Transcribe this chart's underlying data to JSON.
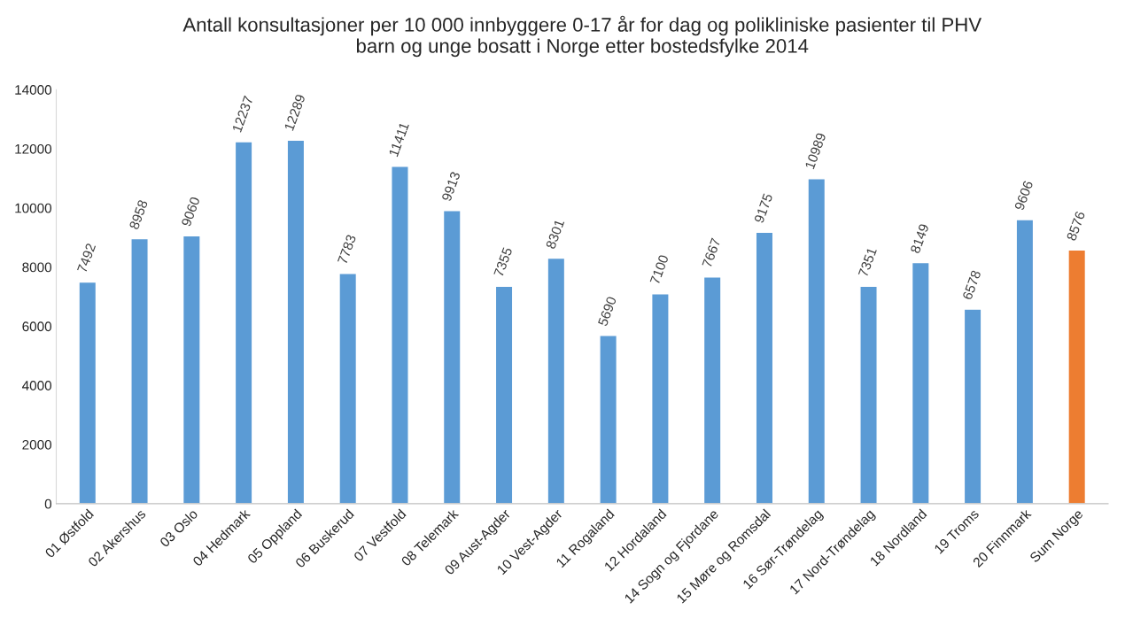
{
  "chart_data": {
    "type": "bar",
    "title": "Antall konsultasjoner per 10 000 innbyggere 0-17 år for dag og polikliniske pasienter til PHV\nbarn og unge bosatt i Norge etter bostedsfylke 2014",
    "categories": [
      "01 Østfold",
      "02 Akershus",
      "03 Oslo",
      "04 Hedmark",
      "05 Oppland",
      "06 Buskerud",
      "07 Vestfold",
      "08 Telemark",
      "09 Aust-Agder",
      "10 Vest-Agder",
      "11 Rogaland",
      "12 Hordaland",
      "14 Sogn og Fjordane",
      "15 Møre og Romsdal",
      "16 Sør-Trøndelag",
      "17 Nord-Trøndelag",
      "18 Nordland",
      "19 Troms",
      "20 Finnmark",
      "Sum Norge"
    ],
    "values": [
      7492,
      8958,
      9060,
      12237,
      12289,
      7783,
      11411,
      9913,
      7355,
      8301,
      5690,
      7100,
      7667,
      9175,
      10989,
      7351,
      8149,
      6578,
      9606,
      8576
    ],
    "colors": [
      "#5b9bd5",
      "#5b9bd5",
      "#5b9bd5",
      "#5b9bd5",
      "#5b9bd5",
      "#5b9bd5",
      "#5b9bd5",
      "#5b9bd5",
      "#5b9bd5",
      "#5b9bd5",
      "#5b9bd5",
      "#5b9bd5",
      "#5b9bd5",
      "#5b9bd5",
      "#5b9bd5",
      "#5b9bd5",
      "#5b9bd5",
      "#5b9bd5",
      "#5b9bd5",
      "#ed7d31"
    ],
    "ylim": [
      0,
      14000
    ],
    "yticks": [
      0,
      2000,
      4000,
      6000,
      8000,
      10000,
      12000,
      14000
    ],
    "grid": false,
    "data_labels": true
  }
}
